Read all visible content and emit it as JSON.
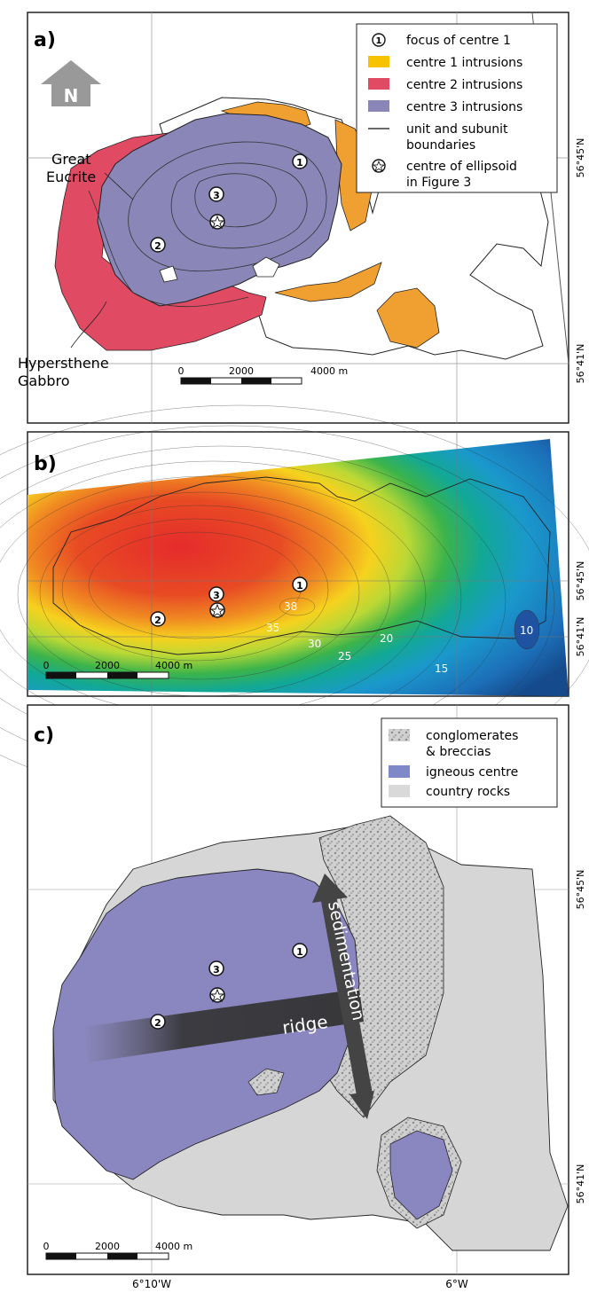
{
  "panels": {
    "a": {
      "label": "a)",
      "legend": [
        {
          "symbol": "numbered-circle",
          "text": "focus of centre 1",
          "symbol_text": "1"
        },
        {
          "symbol": "swatch",
          "color": "#f7c200",
          "text": "centre 1 intrusions"
        },
        {
          "symbol": "swatch",
          "color": "#e04a62",
          "text": "centre 2 intrusions"
        },
        {
          "symbol": "swatch",
          "color": "#8a86b8",
          "text": "centre 3 intrusions"
        },
        {
          "symbol": "line",
          "text_lines": [
            "unit and subunit",
            "boundaries"
          ]
        },
        {
          "symbol": "star-circle",
          "text_lines": [
            "centre of ellipsoid",
            "in Figure 3"
          ]
        }
      ],
      "labels": {
        "great_eucrite": [
          "Great",
          "Eucrite"
        ],
        "hypersthene_gabbro": [
          "Hypersthene",
          "Gabbro"
        ]
      },
      "centres": {
        "c1": "1",
        "c2": "2",
        "c3": "3"
      },
      "north_label": "N",
      "scale": {
        "t0": "0",
        "t1": "2000",
        "t2": "4000 m"
      },
      "lat_top": "56°45'N",
      "lat_bottom": "56°41'N"
    },
    "b": {
      "label": "b)",
      "contour_labels": {
        "v38": "38",
        "v35": "35",
        "v30": "30",
        "v25": "25",
        "v20": "20",
        "v15": "15",
        "v10": "10"
      },
      "centres": {
        "c1": "1",
        "c2": "2",
        "c3": "3"
      },
      "scale": {
        "t0": "0",
        "t1": "2000",
        "t2": "4000 m"
      },
      "lat_top": "56°45'N",
      "lat_bottom": "56°41'N"
    },
    "c": {
      "label": "c)",
      "legend": [
        {
          "symbol": "texture",
          "color": "#bdbdbd",
          "text_lines": [
            "conglomerates",
            "& breccias"
          ]
        },
        {
          "symbol": "swatch",
          "color": "#7f88c8",
          "text": "igneous centre"
        },
        {
          "symbol": "swatch",
          "color": "#d9d9d9",
          "text": "country rocks"
        }
      ],
      "ridge_label": "ridge",
      "sedimentation_label": "sedimentation",
      "centres": {
        "c1": "1",
        "c2": "2",
        "c3": "3"
      },
      "scale": {
        "t0": "0",
        "t1": "2000",
        "t2": "4000 m"
      },
      "lat_top": "56°45'N",
      "lat_bottom": "56°41'N"
    }
  },
  "longitude": {
    "west": "6°10'W",
    "east": "6°W"
  },
  "colors": {
    "centre1": "#f0a030",
    "centre2": "#e04a62",
    "centre3": "#8a86b8",
    "igneous": "#8a86bf",
    "country": "#d6d6d6",
    "breccia": "#b8b8b8"
  }
}
